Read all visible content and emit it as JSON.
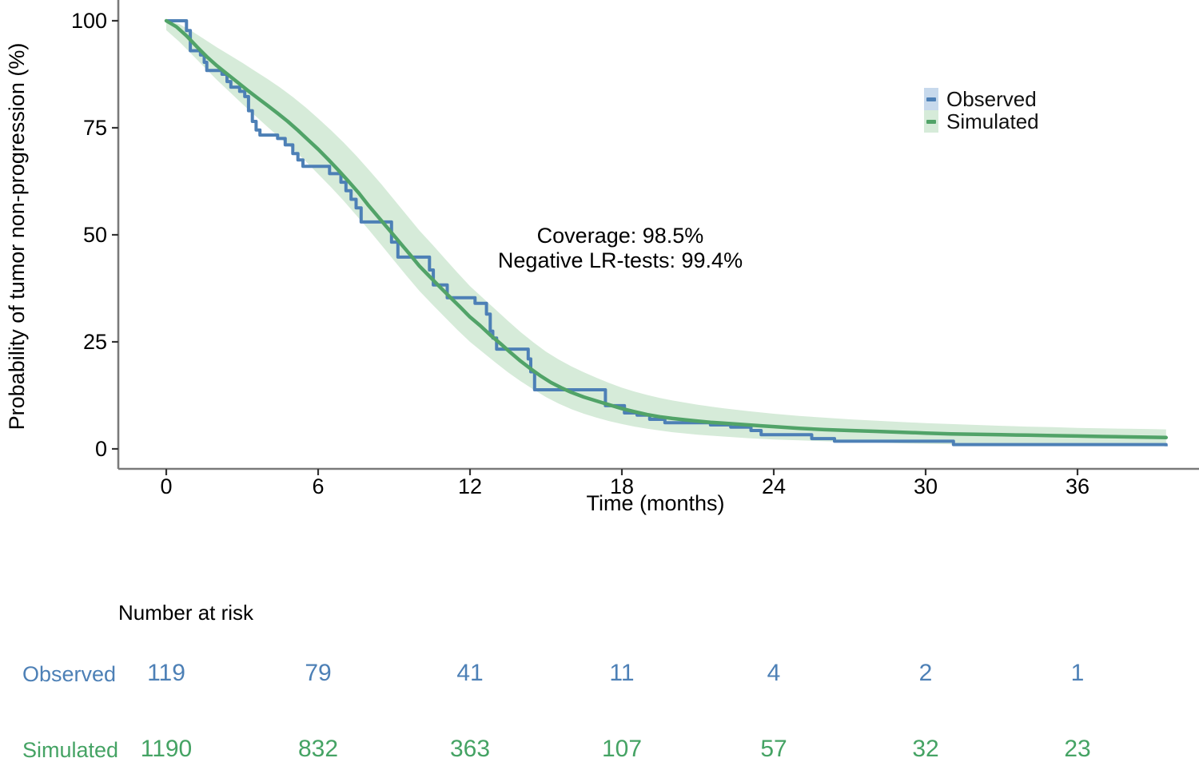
{
  "y_axis": {
    "title": "Probability of tumor non-progression (%)",
    "ticks": [
      100,
      75,
      50,
      25,
      0
    ]
  },
  "x_axis": {
    "title": "Time (months)",
    "ticks": [
      0,
      6,
      12,
      18,
      24,
      30,
      36
    ]
  },
  "legend": [
    {
      "label": "Observed",
      "line_color": "#4d80b6",
      "fill_color": "#c7d9ec"
    },
    {
      "label": "Simulated",
      "line_color": "#51a368",
      "fill_color": "#d6ebd9"
    }
  ],
  "annotation": {
    "line1": "Coverage: 98.5%",
    "line2": "Negative LR-tests: 99.4%"
  },
  "risk_table": {
    "title": "Number at risk",
    "times": [
      0,
      6,
      12,
      18,
      24,
      30,
      36
    ],
    "rows": [
      {
        "label": "Observed",
        "color": "#4d80b6",
        "values": [
          119,
          79,
          41,
          11,
          4,
          2,
          1
        ]
      },
      {
        "label": "Simulated",
        "color": "#45a364",
        "values": [
          1190,
          832,
          363,
          107,
          57,
          32,
          23
        ]
      }
    ]
  },
  "chart_data": {
    "type": "line",
    "title": "",
    "xlabel": "Time (months)",
    "ylabel": "Probability of tumor non-progression (%)",
    "xlim": [
      0,
      39.5
    ],
    "ylim": [
      0,
      100
    ],
    "x_ticks": [
      0,
      6,
      12,
      18,
      24,
      30,
      36
    ],
    "y_ticks": [
      0,
      25,
      50,
      75,
      100
    ],
    "grid": false,
    "legend_position": "top-right",
    "annotations": [
      "Coverage: 98.5%",
      "Negative LR-tests: 99.4%"
    ],
    "colors": {
      "observed": "#4d80b6",
      "simulated": "#51a368",
      "band": "#d6ebd9",
      "axis": "#7a7a7a",
      "tick": "#333333"
    },
    "series": [
      {
        "name": "Observed",
        "style": "step",
        "color": "#4d80b6",
        "points": [
          [
            0,
            100
          ],
          [
            0.8,
            97.7
          ],
          [
            0.95,
            93
          ],
          [
            1.35,
            92
          ],
          [
            1.5,
            90.3
          ],
          [
            1.6,
            88.4
          ],
          [
            2.2,
            87.5
          ],
          [
            2.4,
            85.8
          ],
          [
            2.55,
            84.5
          ],
          [
            2.9,
            83.5
          ],
          [
            3.1,
            82.3
          ],
          [
            3.25,
            79
          ],
          [
            3.4,
            76.5
          ],
          [
            3.55,
            74.5
          ],
          [
            3.7,
            73.3
          ],
          [
            4.4,
            72.5
          ],
          [
            4.7,
            71
          ],
          [
            5,
            69
          ],
          [
            5.2,
            67.5
          ],
          [
            5.4,
            66
          ],
          [
            6.45,
            64.3
          ],
          [
            6.9,
            62.3
          ],
          [
            7.1,
            60.3
          ],
          [
            7.3,
            58.3
          ],
          [
            7.5,
            56.3
          ],
          [
            7.7,
            53
          ],
          [
            8.9,
            48.3
          ],
          [
            9.15,
            44.8
          ],
          [
            10.4,
            41.8
          ],
          [
            10.55,
            38.3
          ],
          [
            11.1,
            35.3
          ],
          [
            12.2,
            34
          ],
          [
            12.65,
            31.5
          ],
          [
            12.8,
            27.5
          ],
          [
            12.9,
            25.9
          ],
          [
            13.05,
            23.3
          ],
          [
            14.3,
            21
          ],
          [
            14.4,
            18
          ],
          [
            14.55,
            13.8
          ],
          [
            17.35,
            10.1
          ],
          [
            18.1,
            8.4
          ],
          [
            18.6,
            7.9
          ],
          [
            19.1,
            6.9
          ],
          [
            19.7,
            6.1
          ],
          [
            21.5,
            5.6
          ],
          [
            22.3,
            5.1
          ],
          [
            23.1,
            4.3
          ],
          [
            23.5,
            3.3
          ],
          [
            25.5,
            2.4
          ],
          [
            26.4,
            1.8
          ],
          [
            31.1,
            1
          ],
          [
            39.45,
            1
          ],
          [
            39.5,
            0.6
          ]
        ]
      },
      {
        "name": "Simulated",
        "style": "line",
        "color": "#51a368",
        "points": [
          [
            0,
            100
          ],
          [
            0.4,
            98.6
          ],
          [
            0.8,
            96.5
          ],
          [
            1.2,
            94
          ],
          [
            1.6,
            91.6
          ],
          [
            2,
            89.5
          ],
          [
            2.4,
            87.6
          ],
          [
            2.8,
            85.7
          ],
          [
            3.2,
            83.8
          ],
          [
            3.6,
            82
          ],
          [
            4,
            80.2
          ],
          [
            4.4,
            78.4
          ],
          [
            4.8,
            76.5
          ],
          [
            5.2,
            74.4
          ],
          [
            5.6,
            72.2
          ],
          [
            6,
            70
          ],
          [
            6.4,
            67.6
          ],
          [
            6.8,
            65.1
          ],
          [
            7.2,
            62.5
          ],
          [
            7.6,
            59.8
          ],
          [
            8,
            56.8
          ],
          [
            8.4,
            54
          ],
          [
            8.8,
            51.2
          ],
          [
            9.2,
            48.4
          ],
          [
            9.6,
            45.6
          ],
          [
            10,
            42.7
          ],
          [
            10.4,
            40.3
          ],
          [
            10.8,
            37.9
          ],
          [
            11.2,
            35.5
          ],
          [
            11.6,
            33.2
          ],
          [
            12,
            30.8
          ],
          [
            12.4,
            28.8
          ],
          [
            12.8,
            26.6
          ],
          [
            13.2,
            24.6
          ],
          [
            13.6,
            22.5
          ],
          [
            14,
            20.5
          ],
          [
            14.4,
            18.7
          ],
          [
            14.8,
            17
          ],
          [
            15.2,
            15.5
          ],
          [
            15.6,
            14.3
          ],
          [
            16,
            13.2
          ],
          [
            16.5,
            12.1
          ],
          [
            17,
            11.2
          ],
          [
            17.5,
            10.3
          ],
          [
            18,
            9.4
          ],
          [
            18.5,
            8.7
          ],
          [
            19,
            8
          ],
          [
            19.5,
            7.5
          ],
          [
            20,
            7.1
          ],
          [
            20.5,
            6.8
          ],
          [
            21,
            6.5
          ],
          [
            21.5,
            6.2
          ],
          [
            22,
            6
          ],
          [
            22.5,
            5.8
          ],
          [
            23,
            5.6
          ],
          [
            23.5,
            5.4
          ],
          [
            24,
            5.2
          ],
          [
            25,
            4.8
          ],
          [
            26,
            4.5
          ],
          [
            27,
            4.3
          ],
          [
            28,
            4.1
          ],
          [
            29,
            3.9
          ],
          [
            30,
            3.7
          ],
          [
            31,
            3.5
          ],
          [
            32,
            3.4
          ],
          [
            33,
            3.3
          ],
          [
            34,
            3.2
          ],
          [
            35,
            3.1
          ],
          [
            36,
            3
          ],
          [
            37,
            2.9
          ],
          [
            38,
            2.8
          ],
          [
            39,
            2.7
          ],
          [
            39.5,
            2.65
          ]
        ]
      },
      {
        "name": "Simulated 95% band upper",
        "style": "band-edge",
        "color": "#d6ebd9",
        "points": [
          [
            0,
            100
          ],
          [
            0.5,
            99.3
          ],
          [
            1,
            97.6
          ],
          [
            1.5,
            95.7
          ],
          [
            2,
            93.8
          ],
          [
            2.5,
            92
          ],
          [
            3,
            90.2
          ],
          [
            3.5,
            88.3
          ],
          [
            4,
            86.4
          ],
          [
            4.5,
            84.4
          ],
          [
            5,
            82.2
          ],
          [
            5.5,
            79.8
          ],
          [
            6,
            77.2
          ],
          [
            6.5,
            74.5
          ],
          [
            7,
            71.6
          ],
          [
            7.5,
            68.5
          ],
          [
            8,
            65.2
          ],
          [
            8.5,
            61.8
          ],
          [
            9,
            58.2
          ],
          [
            9.5,
            54.6
          ],
          [
            10,
            51
          ],
          [
            10.5,
            47.8
          ],
          [
            11,
            44.5
          ],
          [
            11.5,
            41.2
          ],
          [
            12,
            38
          ],
          [
            12.5,
            35.3
          ],
          [
            13,
            32.6
          ],
          [
            13.5,
            29.9
          ],
          [
            14,
            27.3
          ],
          [
            14.5,
            24.9
          ],
          [
            15,
            22.7
          ],
          [
            15.5,
            20.9
          ],
          [
            16,
            19.3
          ],
          [
            16.5,
            17.9
          ],
          [
            17,
            16.6
          ],
          [
            17.5,
            15.4
          ],
          [
            18,
            14.3
          ],
          [
            18.5,
            13.4
          ],
          [
            19,
            12.6
          ],
          [
            19.5,
            11.9
          ],
          [
            20,
            11.3
          ],
          [
            21,
            10.3
          ],
          [
            22,
            9.5
          ],
          [
            23,
            8.8
          ],
          [
            24,
            8.2
          ],
          [
            25,
            7.7
          ],
          [
            26,
            7.3
          ],
          [
            27,
            6.9
          ],
          [
            28,
            6.6
          ],
          [
            29,
            6.3
          ],
          [
            30,
            6
          ],
          [
            31,
            5.8
          ],
          [
            32,
            5.6
          ],
          [
            33,
            5.4
          ],
          [
            34,
            5.2
          ],
          [
            35,
            5.1
          ],
          [
            36,
            4.9
          ],
          [
            37,
            4.8
          ],
          [
            38,
            4.7
          ],
          [
            39,
            4.6
          ],
          [
            39.5,
            4.55
          ]
        ]
      },
      {
        "name": "Simulated 95% band lower",
        "style": "band-edge",
        "color": "#d6ebd9",
        "points": [
          [
            0,
            97.8
          ],
          [
            0.5,
            95.2
          ],
          [
            1,
            92.2
          ],
          [
            1.5,
            89.2
          ],
          [
            2,
            86.2
          ],
          [
            2.5,
            83.4
          ],
          [
            3,
            80.6
          ],
          [
            3.5,
            77.9
          ],
          [
            4,
            75.2
          ],
          [
            4.5,
            72.6
          ],
          [
            5,
            70
          ],
          [
            5.5,
            67.2
          ],
          [
            6,
            64.2
          ],
          [
            6.5,
            61.2
          ],
          [
            7,
            58
          ],
          [
            7.5,
            54.6
          ],
          [
            8,
            51.2
          ],
          [
            8.5,
            47.6
          ],
          [
            9,
            44
          ],
          [
            9.5,
            40.4
          ],
          [
            10,
            36.9
          ],
          [
            10.5,
            33.8
          ],
          [
            11,
            30.8
          ],
          [
            11.5,
            27.8
          ],
          [
            12,
            25
          ],
          [
            12.5,
            22.6
          ],
          [
            13,
            20.2
          ],
          [
            13.5,
            17.9
          ],
          [
            14,
            15.8
          ],
          [
            14.5,
            13.9
          ],
          [
            15,
            12.1
          ],
          [
            15.5,
            10.6
          ],
          [
            16,
            9.3
          ],
          [
            16.5,
            8.2
          ],
          [
            17,
            7.3
          ],
          [
            17.5,
            6.5
          ],
          [
            18,
            5.8
          ],
          [
            18.5,
            5.2
          ],
          [
            19,
            4.7
          ],
          [
            19.5,
            4.3
          ],
          [
            20,
            3.9
          ],
          [
            21,
            3.3
          ],
          [
            22,
            2.9
          ],
          [
            23,
            2.5
          ],
          [
            24,
            2.2
          ],
          [
            25,
            2
          ],
          [
            26,
            1.8
          ],
          [
            27,
            1.6
          ],
          [
            28,
            1.5
          ],
          [
            29,
            1.3
          ],
          [
            30,
            1.2
          ],
          [
            31,
            1.1
          ],
          [
            32,
            1
          ],
          [
            33,
            0.95
          ],
          [
            34,
            0.9
          ],
          [
            35,
            0.85
          ],
          [
            36,
            0.8
          ],
          [
            37,
            0.75
          ],
          [
            38,
            0.7
          ],
          [
            39,
            0.68
          ],
          [
            39.5,
            0.65
          ]
        ]
      }
    ]
  }
}
